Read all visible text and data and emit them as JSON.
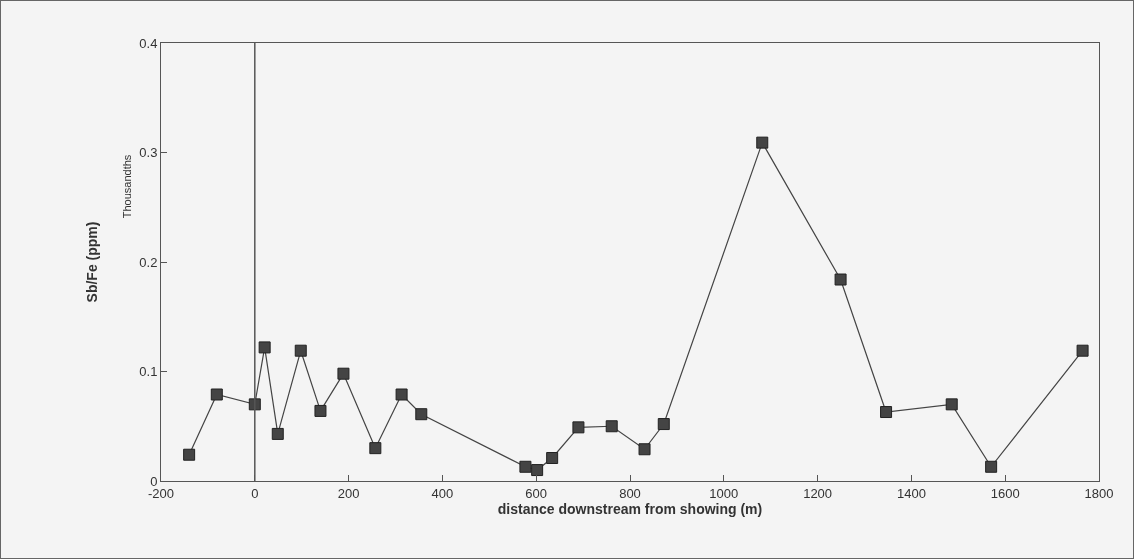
{
  "chart_data": {
    "type": "line",
    "xlabel": "distance downstream from showing (m)",
    "ylabel": "Sb/Fe (ppm)",
    "annotations": [
      "Thousandths"
    ],
    "x": [
      -140,
      -81,
      0,
      21,
      49,
      98,
      140,
      189,
      257,
      313,
      355,
      577,
      602,
      634,
      690,
      761,
      831,
      872,
      1082,
      1249,
      1346,
      1486,
      1570,
      1765
    ],
    "series": [
      {
        "color": "#444444",
        "values": [
          0.024,
          0.079,
          0.07,
          0.122,
          0.043,
          0.119,
          0.064,
          0.098,
          0.03,
          0.079,
          0.061,
          0.013,
          0.01,
          0.021,
          0.049,
          0.05,
          0.029,
          0.052,
          0.309,
          0.184,
          0.063,
          0.07,
          0.013,
          0.119
        ]
      }
    ],
    "xlim": [
      -200,
      1800
    ],
    "xticks": [
      -200,
      0,
      200,
      400,
      600,
      800,
      1000,
      1200,
      1400,
      1600,
      1800
    ],
    "ylim": [
      0,
      0.4
    ],
    "yticks": [
      0,
      0.1,
      0.2,
      0.3,
      0.4
    ],
    "ref_lines": [
      {
        "axis": "x",
        "value": 0,
        "color": "#555555"
      }
    ],
    "grid": false,
    "marker": "square",
    "line_style": "solid"
  }
}
